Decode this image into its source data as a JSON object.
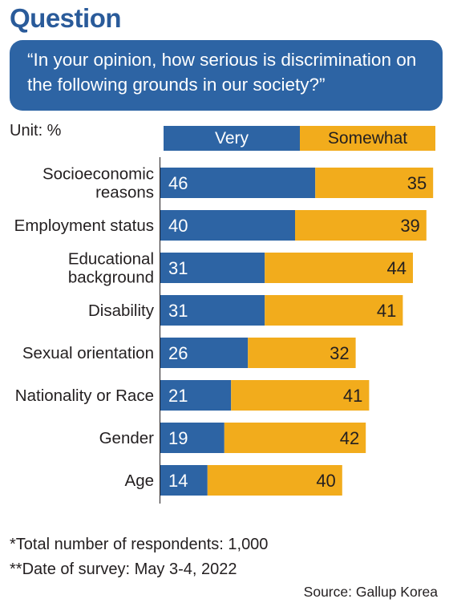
{
  "header": {
    "title": "Question",
    "question": "“In your opinion, how serious is discrimination on the following grounds in our society?”"
  },
  "unit_label": "Unit: %",
  "colors": {
    "very": "#2d64a4",
    "somewhat": "#f2ac1c",
    "accent_title": "#2a5b9a"
  },
  "chart_data": {
    "type": "bar",
    "orientation": "horizontal",
    "stacked": true,
    "categories": [
      [
        "Socioeconomic",
        "reasons"
      ],
      [
        "Employment status"
      ],
      [
        "Educational",
        "background"
      ],
      [
        "Disability"
      ],
      [
        "Sexual orientation"
      ],
      [
        "Nationality or Race"
      ],
      [
        "Gender"
      ],
      [
        "Age"
      ]
    ],
    "series": [
      {
        "name": "Very",
        "values": [
          46,
          40,
          31,
          31,
          26,
          21,
          19,
          14
        ]
      },
      {
        "name": "Somewhat",
        "values": [
          35,
          39,
          44,
          41,
          32,
          41,
          42,
          40
        ]
      }
    ],
    "xlim": [
      0,
      85
    ],
    "legend_position": "top",
    "grid": false
  },
  "footnotes": [
    "*Total number of respondents: 1,000",
    "**Date of survey: May 3-4, 2022"
  ],
  "source": "Source: Gallup Korea"
}
